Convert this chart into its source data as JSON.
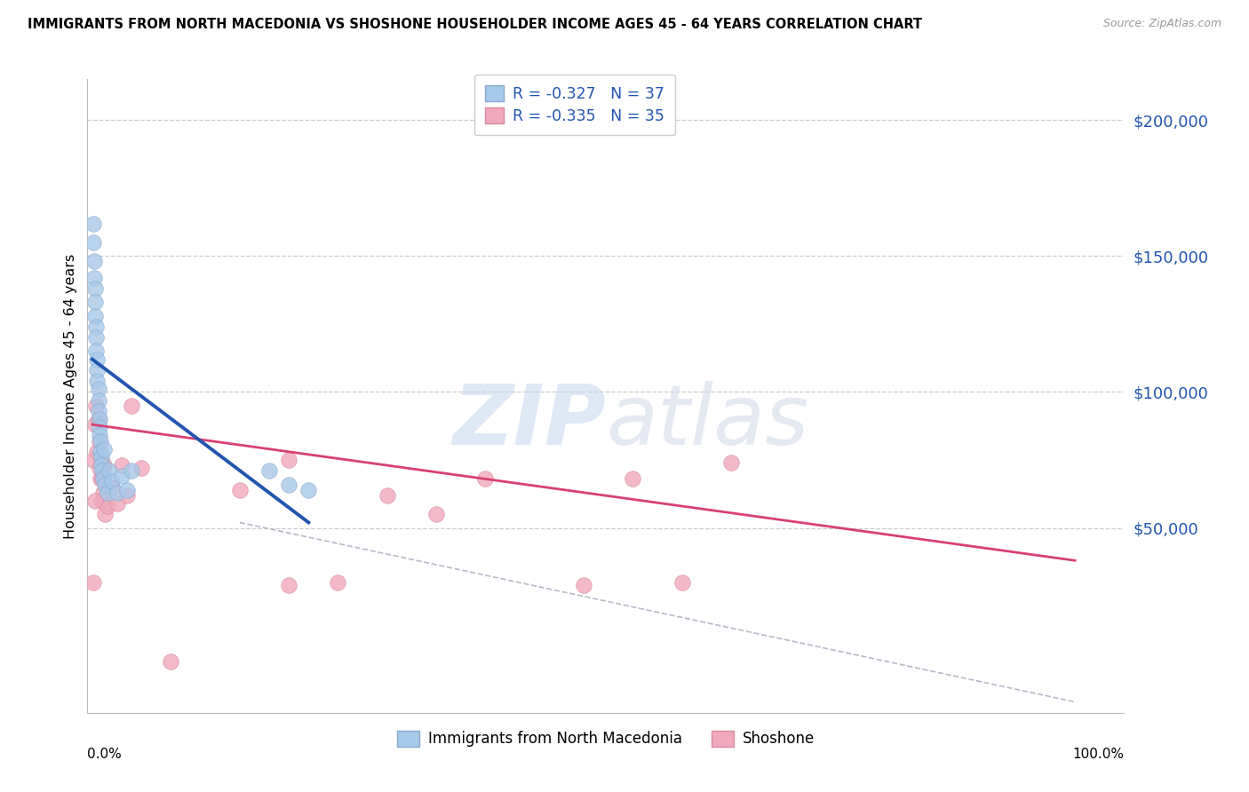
{
  "title": "IMMIGRANTS FROM NORTH MACEDONIA VS SHOSHONE HOUSEHOLDER INCOME AGES 45 - 64 YEARS CORRELATION CHART",
  "source": "Source: ZipAtlas.com",
  "ylabel": "Householder Income Ages 45 - 64 years",
  "r_blue": -0.327,
  "n_blue": 37,
  "r_pink": -0.335,
  "n_pink": 35,
  "legend_label_blue": "Immigrants from North Macedonia",
  "legend_label_pink": "Shoshone",
  "ytick_values": [
    50000,
    100000,
    150000,
    200000
  ],
  "ytick_labels": [
    "$50,000",
    "$100,000",
    "$150,000",
    "$200,000"
  ],
  "ymax": 215000,
  "ymin": -18000,
  "xmin": -0.005,
  "xmax": 1.05,
  "watermark_zip": "ZIP",
  "watermark_atlas": "atlas",
  "blue_color": "#a8c8e8",
  "blue_edge_color": "#88aad0",
  "blue_line_color": "#2255b0",
  "pink_color": "#f0a8bc",
  "pink_edge_color": "#d888a0",
  "pink_line_color": "#d84070",
  "label_color": "#2255b0",
  "blue_scatter_x": [
    0.001,
    0.001,
    0.002,
    0.002,
    0.003,
    0.003,
    0.003,
    0.004,
    0.004,
    0.004,
    0.005,
    0.005,
    0.005,
    0.006,
    0.006,
    0.006,
    0.007,
    0.007,
    0.007,
    0.008,
    0.008,
    0.009,
    0.009,
    0.01,
    0.011,
    0.012,
    0.013,
    0.015,
    0.017,
    0.02,
    0.025,
    0.03,
    0.035,
    0.04,
    0.18,
    0.2,
    0.22
  ],
  "blue_scatter_y": [
    162000,
    155000,
    148000,
    142000,
    138000,
    133000,
    128000,
    124000,
    120000,
    115000,
    112000,
    108000,
    104000,
    101000,
    97000,
    93000,
    90000,
    87000,
    84000,
    82000,
    78000,
    76000,
    73000,
    71000,
    68000,
    79000,
    66000,
    63000,
    71000,
    67000,
    63000,
    69000,
    64000,
    71000,
    71000,
    66000,
    64000
  ],
  "pink_scatter_x": [
    0.001,
    0.003,
    0.004,
    0.005,
    0.006,
    0.007,
    0.007,
    0.008,
    0.009,
    0.009,
    0.01,
    0.011,
    0.012,
    0.013,
    0.015,
    0.02,
    0.025,
    0.03,
    0.035,
    0.04,
    0.05,
    0.08,
    0.15,
    0.2,
    0.25,
    0.3,
    0.35,
    0.4,
    0.5,
    0.55,
    0.6,
    0.65,
    0.2,
    0.001,
    0.003
  ],
  "pink_scatter_y": [
    75000,
    88000,
    95000,
    78000,
    90000,
    82000,
    72000,
    68000,
    75000,
    60000,
    68000,
    63000,
    73000,
    55000,
    58000,
    65000,
    59000,
    73000,
    62000,
    95000,
    72000,
    1000,
    64000,
    29000,
    30000,
    62000,
    55000,
    68000,
    29000,
    68000,
    30000,
    74000,
    75000,
    30000,
    60000
  ],
  "blue_trend_x": [
    0.0,
    0.22
  ],
  "blue_trend_y": [
    112000,
    52000
  ],
  "pink_trend_x": [
    0.0,
    1.0
  ],
  "pink_trend_y": [
    88000,
    38000
  ],
  "gray_trend_x": [
    0.15,
    1.0
  ],
  "gray_trend_y": [
    52000,
    -14000
  ]
}
